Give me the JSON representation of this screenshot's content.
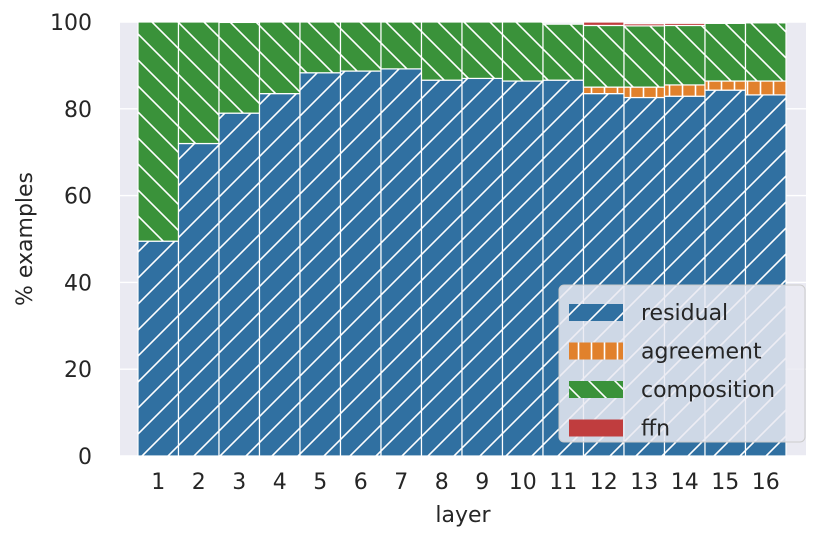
{
  "chart_data": {
    "type": "bar",
    "stacked": true,
    "categories": [
      "1",
      "2",
      "3",
      "4",
      "5",
      "6",
      "7",
      "8",
      "9",
      "10",
      "11",
      "12",
      "13",
      "14",
      "15",
      "16"
    ],
    "series": [
      {
        "name": "residual",
        "color": "#3070a1",
        "hatch": "diagonal",
        "values": [
          49.5,
          72,
          79,
          83.5,
          88.3,
          88.7,
          89.2,
          86.6,
          87,
          86.4,
          86.6,
          83.5,
          82.6,
          82.9,
          84.3,
          83.2
        ]
      },
      {
        "name": "agreement",
        "color": "#e1812c",
        "hatch": "dashed",
        "values": [
          0,
          0,
          0,
          0,
          0,
          0,
          0,
          0,
          0,
          0,
          0,
          1.5,
          2.4,
          2.6,
          2.1,
          3.2
        ]
      },
      {
        "name": "composition",
        "color": "#3a923a",
        "hatch": "back-diagonal",
        "values": [
          50.5,
          28,
          20.9,
          16.5,
          11.7,
          11.3,
          10.8,
          13.4,
          13,
          13.6,
          12.9,
          14.2,
          14.1,
          13.7,
          13.3,
          13.4
        ]
      },
      {
        "name": "ffn",
        "color": "#c03d3e",
        "hatch": "none",
        "values": [
          0,
          0,
          0,
          0,
          0,
          0,
          0,
          0,
          0,
          0,
          0,
          0.8,
          0.5,
          0.5,
          0.2,
          0
        ]
      }
    ],
    "xlabel": "layer",
    "ylabel": "% examples",
    "ylim": [
      0,
      100
    ],
    "yticks": [
      "0",
      "20",
      "40",
      "60",
      "80",
      "100"
    ],
    "grid": true,
    "legend_position": "lower-right",
    "background": "#eaeaf2"
  }
}
